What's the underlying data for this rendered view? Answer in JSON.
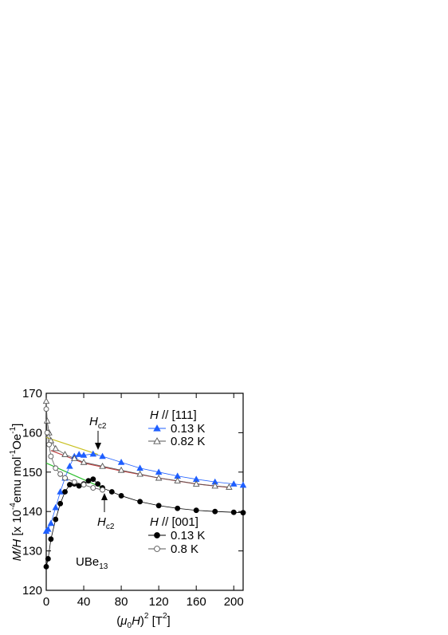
{
  "chart_data": {
    "type": "scatter",
    "xlabel": [
      "(",
      "μ",
      "0",
      "H",
      ")",
      "2",
      " [T",
      "2",
      "]"
    ],
    "ylabel": [
      "M/H",
      " [x 10",
      "-4",
      "emu mol",
      "-1",
      "Oe",
      "-1",
      "]"
    ],
    "xlim": [
      0,
      210
    ],
    "xticks": [
      0,
      40,
      80,
      120,
      160,
      200
    ],
    "ylim": [
      120,
      170
    ],
    "yticks": [
      120,
      130,
      140,
      150,
      160,
      170
    ],
    "annotations": [
      [
        "H",
        "c2"
      ],
      [
        "H",
        "c2"
      ]
    ],
    "sample": [
      "UBe",
      "13"
    ],
    "legend_groups": [
      [
        "H",
        " // [111]"
      ],
      [
        "H",
        " // [001]"
      ]
    ],
    "series": [
      {
        "name": "0.13 K",
        "color": "#1f5fff",
        "marker": "triangle",
        "filled": true,
        "x": [
          0,
          2,
          5,
          10,
          15,
          20,
          25,
          30,
          35,
          40,
          50,
          60,
          80,
          100,
          120,
          140,
          160,
          180,
          200,
          210
        ],
        "values": [
          135,
          135.5,
          137,
          141,
          145,
          148.5,
          151.5,
          154,
          154.5,
          154.3,
          154.6,
          154,
          152.5,
          151,
          150,
          149,
          148.2,
          147.5,
          147,
          146.7
        ]
      },
      {
        "name": "0.82 K",
        "color": "#555555",
        "marker": "triangle",
        "filled": false,
        "x": [
          0,
          1,
          3,
          5,
          10,
          20,
          30,
          40,
          60,
          80,
          100,
          120,
          140,
          160,
          180,
          195
        ],
        "values": [
          168,
          163,
          160,
          158,
          156,
          154.5,
          153.5,
          152.5,
          151.5,
          150.5,
          149.5,
          148.5,
          147.8,
          147,
          146.5,
          146.2
        ]
      },
      {
        "name": "0.13 K",
        "color": "#000000",
        "marker": "circle",
        "filled": true,
        "x": [
          0,
          2,
          5,
          10,
          15,
          20,
          25,
          30,
          35,
          40,
          45,
          50,
          55,
          60,
          70,
          80,
          100,
          120,
          140,
          160,
          180,
          200,
          210
        ],
        "values": [
          126,
          128,
          133,
          138,
          142,
          145,
          146.8,
          147,
          146.5,
          147,
          147.8,
          148.2,
          147,
          146,
          145,
          144,
          142.5,
          141.5,
          140.8,
          140.3,
          140,
          139.8,
          139.7
        ]
      },
      {
        "name": "0.8 K",
        "color": "#555555",
        "marker": "circle",
        "filled": false,
        "x": [
          0,
          1,
          3,
          5,
          10,
          15,
          20,
          30,
          40,
          50,
          60
        ],
        "values": [
          166,
          160,
          157,
          154,
          151,
          149.5,
          148.5,
          147.5,
          146.8,
          146,
          145.5
        ]
      }
    ],
    "fits": [
      {
        "color": "#c8c020",
        "x": [
          0,
          55
        ],
        "values": [
          158.8,
          154.5
        ]
      },
      {
        "color": "#30c030",
        "x": [
          0,
          60
        ],
        "values": [
          152.3,
          146
        ]
      },
      {
        "color": "#c04040",
        "x": [
          5,
          40,
          80,
          120,
          160,
          195
        ],
        "values": [
          155.5,
          152.3,
          150.3,
          148.5,
          147,
          146.1
        ]
      }
    ]
  }
}
